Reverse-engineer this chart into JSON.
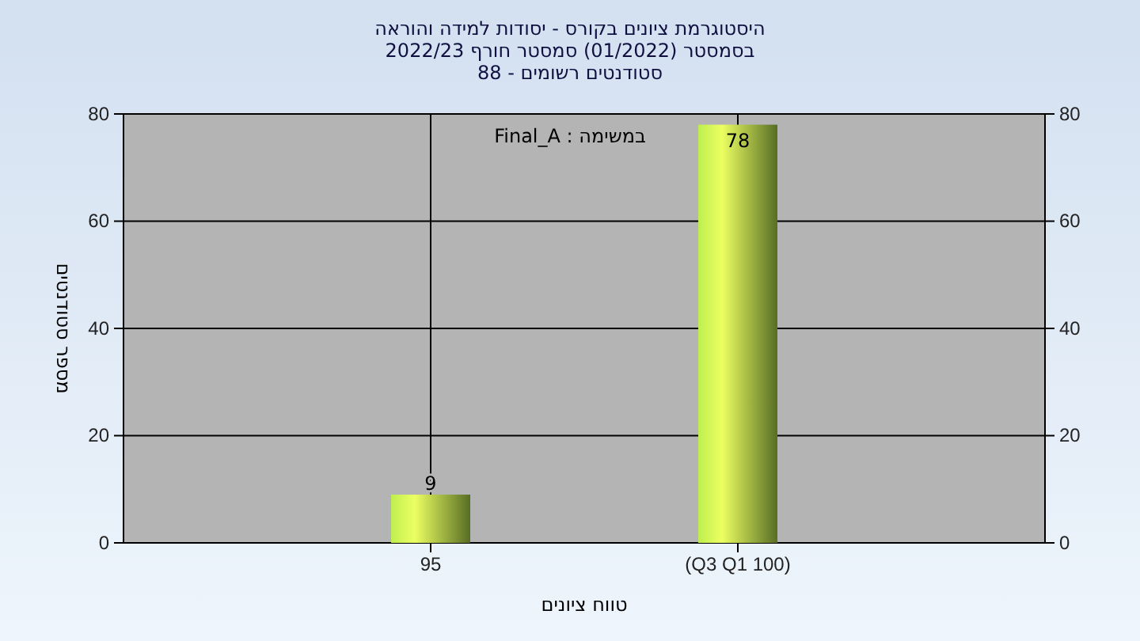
{
  "chart_data": {
    "type": "bar",
    "title": "היסטוגרמת ציונים בקורס - יסודות למידה והוראה",
    "subtitle": "בסמסטר  (01/2022)  סמסטר חורף 2022/23\nסטודנטים רשומים - 88",
    "annotations": [
      "במשימה : Final_A"
    ],
    "xlabel": "טווח ציונים",
    "ylabel": "מספר סטודנטים",
    "categories": [
      "95",
      "(Q3 Q1 100)"
    ],
    "values": [
      9,
      78
    ],
    "color": "#9ac040",
    "ylim": [
      0,
      80
    ],
    "yticks": [
      0,
      20,
      40,
      60,
      80
    ],
    "y2lim": [
      0,
      80
    ],
    "y2ticks": [
      0,
      20,
      40,
      60,
      80
    ],
    "grid": true,
    "data_labels": true
  }
}
